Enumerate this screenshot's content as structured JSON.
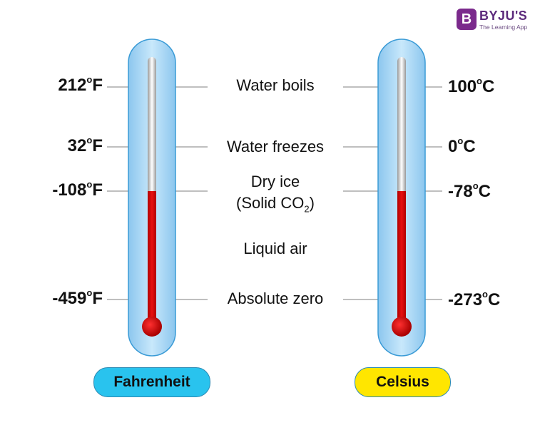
{
  "brand": {
    "mark": "B",
    "name": "BYJU'S",
    "tagline": "The Learning App"
  },
  "events": [
    {
      "name": "Water boils",
      "fahrenheit": "212",
      "celsius": "100"
    },
    {
      "name": "Water freezes",
      "fahrenheit": "32",
      "celsius": "0"
    },
    {
      "name_line1": "Dry ice",
      "name_line2": "(Solid CO",
      "name_sub": "2",
      "name_end": ")",
      "fahrenheit": "-108",
      "celsius": "-78"
    },
    {
      "name": "Liquid air"
    },
    {
      "name": "Absolute zero",
      "fahrenheit": "-459",
      "celsius": "-273"
    }
  ],
  "units": {
    "degree": "o",
    "f": "F",
    "c": "C"
  },
  "scales": {
    "fahrenheit": "Fahrenheit",
    "celsius": "Celsius"
  },
  "colors": {
    "tube": "#a8d8f5",
    "mercury": "#c80000",
    "fahrenheit_pill": "#29c3ee",
    "celsius_pill": "#ffe600",
    "guide_line": "#999999"
  }
}
